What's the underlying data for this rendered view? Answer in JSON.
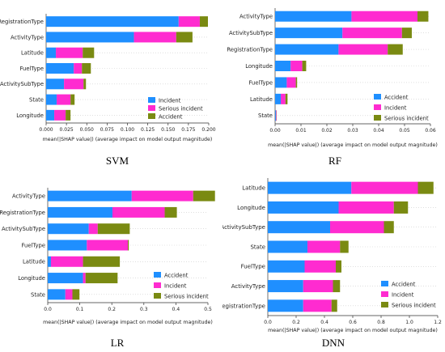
{
  "colors": {
    "blue": "#1f8fff",
    "pink": "#ff2bd0",
    "olive": "#7a8a12"
  },
  "chart_data": [
    {
      "type": "bar",
      "stacked": true,
      "orientation": "horizontal",
      "caption": "SVM",
      "xlabel": "mean(|SHAP value|) (average impact on model output magnitude)",
      "xlim": [
        0,
        0.2
      ],
      "xticks": [
        "0.000",
        "0.025",
        "0.050",
        "0.075",
        "0.100",
        "0.125",
        "0.150",
        "0.175",
        "0.200"
      ],
      "grid": false,
      "legend_position": "bottom-right",
      "categories": [
        "RegistrationType",
        "ActivityType",
        "Latitude",
        "FuelType",
        "ActivitySubType",
        "State",
        "Longitude"
      ],
      "series": [
        {
          "name": "Incident",
          "color": "#1f8fff",
          "values": [
            0.163,
            0.108,
            0.012,
            0.034,
            0.022,
            0.013,
            0.01
          ]
        },
        {
          "name": "Serious incident",
          "color": "#ff2bd0",
          "values": [
            0.026,
            0.052,
            0.033,
            0.01,
            0.024,
            0.017,
            0.014
          ]
        },
        {
          "name": "Accident",
          "color": "#7a8a12",
          "values": [
            0.01,
            0.02,
            0.014,
            0.011,
            0.003,
            0.005,
            0.006
          ]
        }
      ]
    },
    {
      "type": "bar",
      "stacked": true,
      "orientation": "horizontal",
      "caption": "RF",
      "xlabel": "mean(|SHAP value|) (average impact on model output magnitude)",
      "xlim": [
        0,
        0.06
      ],
      "xticks": [
        "0.00",
        "0.01",
        "0.02",
        "0.03",
        "0.04",
        "0.05",
        "0.06"
      ],
      "grid": false,
      "legend_position": "bottom-right",
      "categories": [
        "ActivityType",
        "ActivitySubType",
        "RegistrationType",
        "Longitude",
        "FuelType",
        "Latitude",
        "State"
      ],
      "series": [
        {
          "name": "Accident",
          "color": "#1f8fff",
          "values": [
            0.0295,
            0.026,
            0.0245,
            0.006,
            0.0045,
            0.0022,
            0.0003
          ]
        },
        {
          "name": "Incident",
          "color": "#ff2bd0",
          "values": [
            0.0255,
            0.023,
            0.019,
            0.0045,
            0.0035,
            0.0018,
            0.0002
          ]
        },
        {
          "name": "Serious incident",
          "color": "#7a8a12",
          "values": [
            0.0042,
            0.0038,
            0.0058,
            0.0015,
            0.0005,
            0.0008,
            0.0001
          ]
        }
      ]
    },
    {
      "type": "bar",
      "stacked": true,
      "orientation": "horizontal",
      "caption": "LR",
      "xlabel": "mean(|SHAP value|) (average impact on model output magnitude)",
      "xlim": [
        0,
        0.5
      ],
      "xticks": [
        "0.0",
        "0.1",
        "0.2",
        "0.3",
        "0.4",
        "0.5"
      ],
      "grid": false,
      "legend_position": "bottom-right",
      "categories": [
        "ActivityType",
        "RegistrationType",
        "ActivitySubType",
        "FuelType",
        "Latitude",
        "Longitude",
        "State"
      ],
      "series": [
        {
          "name": "Accident",
          "color": "#1f8fff",
          "values": [
            0.262,
            0.202,
            0.128,
            0.122,
            0.01,
            0.11,
            0.055
          ]
        },
        {
          "name": "Incident",
          "color": "#ff2bd0",
          "values": [
            0.192,
            0.163,
            0.028,
            0.128,
            0.1,
            0.008,
            0.022
          ]
        },
        {
          "name": "Serious incident",
          "color": "#7a8a12",
          "values": [
            0.068,
            0.038,
            0.1,
            0.003,
            0.115,
            0.1,
            0.022
          ]
        }
      ]
    },
    {
      "type": "bar",
      "stacked": true,
      "orientation": "horizontal",
      "caption": "DNN",
      "xlabel": "mean(|SHAP value|) (average impact on model output magnitude)",
      "xlim": [
        0,
        1.2
      ],
      "xticks": [
        "0.0",
        "0.2",
        "0.4",
        "0.6",
        "0.8",
        "1.0",
        "1.2"
      ],
      "grid": false,
      "legend_position": "bottom-right",
      "categories": [
        "Latitude",
        "Longitude",
        "ActivitySubType",
        "State",
        "FuelType",
        "ActivityType",
        "RegistrationType"
      ],
      "series": [
        {
          "name": "Accident",
          "color": "#1f8fff",
          "values": [
            0.59,
            0.5,
            0.44,
            0.28,
            0.26,
            0.25,
            0.25
          ]
        },
        {
          "name": "Incident",
          "color": "#ff2bd0",
          "values": [
            0.47,
            0.39,
            0.38,
            0.23,
            0.22,
            0.21,
            0.2
          ]
        },
        {
          "name": "Serious incident",
          "color": "#7a8a12",
          "values": [
            0.11,
            0.1,
            0.07,
            0.06,
            0.04,
            0.05,
            0.04
          ]
        }
      ]
    }
  ]
}
